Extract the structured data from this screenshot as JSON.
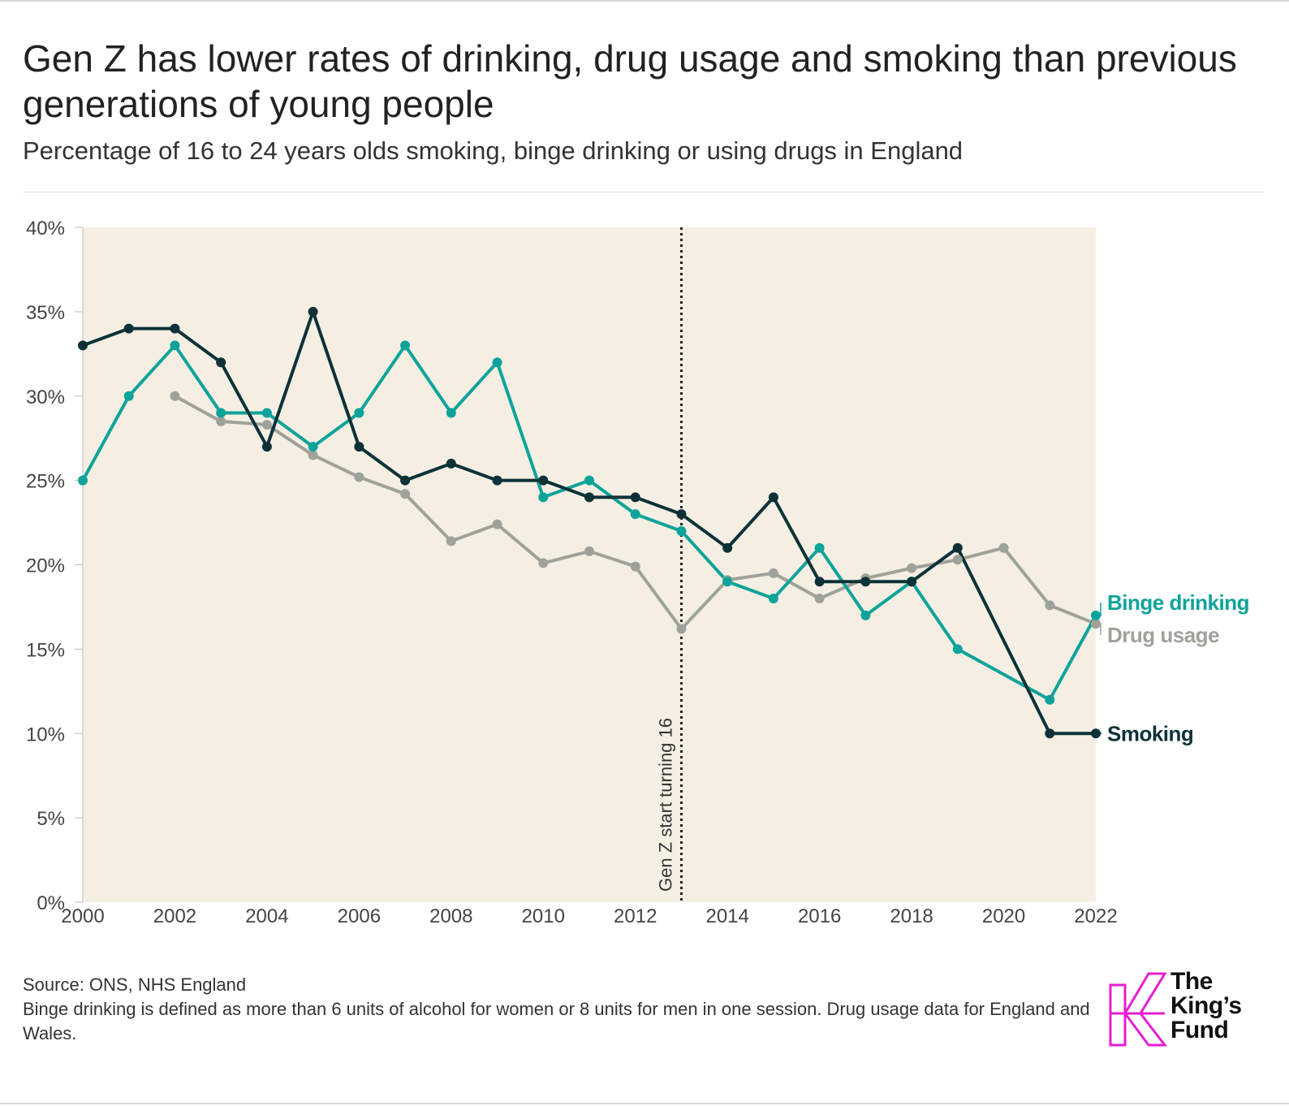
{
  "title": "Gen Z has lower rates of drinking, drug usage and smoking than previous generations of young people",
  "subtitle": "Percentage of 16 to 24 years olds smoking, binge drinking or using drugs in England",
  "footer": {
    "source": "Source: ONS, NHS England",
    "note": "Binge drinking is defined as more than 6 units of alcohol for women or 8 units for men in one session. Drug usage data for England and Wales."
  },
  "logo": {
    "line1": "The",
    "line2": "King’s",
    "line3": "Fund",
    "color": "#e61ed2"
  },
  "chart_data": {
    "type": "line",
    "title": "",
    "xlabel": "",
    "ylabel": "",
    "xlim": [
      2000,
      2022
    ],
    "ylim": [
      0,
      40
    ],
    "x_ticks": [
      2000,
      2002,
      2004,
      2006,
      2008,
      2010,
      2012,
      2014,
      2016,
      2018,
      2020,
      2022
    ],
    "x_tick_labels": [
      "2000",
      "2002",
      "2004",
      "2006",
      "2008",
      "2010",
      "2012",
      "2014",
      "2016",
      "2018",
      "2020",
      "2022"
    ],
    "y_ticks": [
      0,
      5,
      10,
      15,
      20,
      25,
      30,
      35,
      40
    ],
    "y_tick_labels": [
      "0%",
      "5%",
      "10%",
      "15%",
      "20%",
      "25%",
      "30%",
      "35%",
      "40%"
    ],
    "background_color": "#f5efe3",
    "grid": false,
    "annotation": {
      "x": 2013,
      "text": "Gen Z start turning 16"
    },
    "series": [
      {
        "name": "Drug usage",
        "color": "#9ea299",
        "points": [
          [
            2002,
            30
          ],
          [
            2003,
            28.5
          ],
          [
            2004,
            28.3
          ],
          [
            2005,
            26.5
          ],
          [
            2006,
            25.2
          ],
          [
            2007,
            24.2
          ],
          [
            2008,
            21.4
          ],
          [
            2009,
            22.4
          ],
          [
            2010,
            20.1
          ],
          [
            2011,
            20.8
          ],
          [
            2012,
            19.9
          ],
          [
            2013,
            16.2
          ],
          [
            2014,
            19.1
          ],
          [
            2015,
            19.5
          ],
          [
            2016,
            18
          ],
          [
            2017,
            19.2
          ],
          [
            2018,
            19.8
          ],
          [
            2019,
            20.3
          ],
          [
            2020,
            21
          ],
          [
            2021,
            17.6
          ],
          [
            2022,
            16.5
          ]
        ]
      },
      {
        "name": "Binge drinking",
        "color": "#0ea39a",
        "points": [
          [
            2000,
            25
          ],
          [
            2001,
            30
          ],
          [
            2002,
            33
          ],
          [
            2003,
            29
          ],
          [
            2004,
            29
          ],
          [
            2005,
            27
          ],
          [
            2006,
            29
          ],
          [
            2007,
            33
          ],
          [
            2008,
            29
          ],
          [
            2009,
            32
          ],
          [
            2010,
            24
          ],
          [
            2011,
            25
          ],
          [
            2012,
            23
          ],
          [
            2013,
            22
          ],
          [
            2014,
            19
          ],
          [
            2015,
            18
          ],
          [
            2016,
            21
          ],
          [
            2017,
            17
          ],
          [
            2018,
            19
          ],
          [
            2019,
            15
          ],
          [
            2021,
            12
          ],
          [
            2022,
            17
          ]
        ]
      },
      {
        "name": "Smoking",
        "color": "#0c3238",
        "points": [
          [
            2000,
            33
          ],
          [
            2001,
            34
          ],
          [
            2002,
            34
          ],
          [
            2003,
            32
          ],
          [
            2004,
            27
          ],
          [
            2005,
            35
          ],
          [
            2006,
            27
          ],
          [
            2007,
            25
          ],
          [
            2008,
            26
          ],
          [
            2009,
            25
          ],
          [
            2010,
            25
          ],
          [
            2011,
            24
          ],
          [
            2012,
            24
          ],
          [
            2013,
            23
          ],
          [
            2014,
            21
          ],
          [
            2015,
            24
          ],
          [
            2016,
            19
          ],
          [
            2017,
            19
          ],
          [
            2018,
            19
          ],
          [
            2019,
            21
          ],
          [
            2021,
            10
          ],
          [
            2022,
            10
          ]
        ]
      }
    ],
    "legend_order": [
      "Binge drinking",
      "Drug usage",
      "Smoking"
    ]
  }
}
